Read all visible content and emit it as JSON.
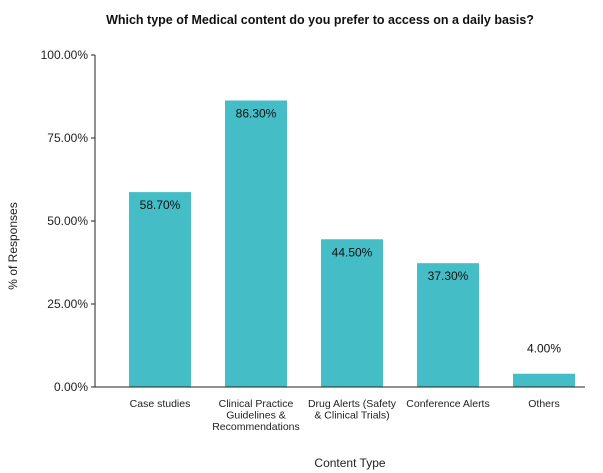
{
  "chart_data": {
    "type": "bar",
    "title": "Which type of Medical content do you prefer to access on a daily basis?",
    "xlabel": "Content Type",
    "ylabel": "% of Responses",
    "categories": [
      [
        "Case studies"
      ],
      [
        "Clinical Practice",
        "Guidelines &",
        "Recommendations"
      ],
      [
        "Drug Alerts (Safety",
        "& Clinical Trials)"
      ],
      [
        "Conference Alerts"
      ],
      [
        "Others"
      ]
    ],
    "values": [
      58.7,
      86.3,
      44.5,
      37.3,
      4.0
    ],
    "data_labels": [
      "58.70%",
      "86.30%",
      "44.50%",
      "37.30%",
      "4.00%"
    ],
    "ylim": [
      0,
      100
    ],
    "yticks": [
      0,
      25,
      50,
      75,
      100
    ],
    "ytick_labels": [
      "0.00%",
      "25.00%",
      "50.00%",
      "75.00%",
      "100.00%"
    ],
    "grid": false,
    "legend": "none",
    "bar_color": "#45BDC6"
  }
}
